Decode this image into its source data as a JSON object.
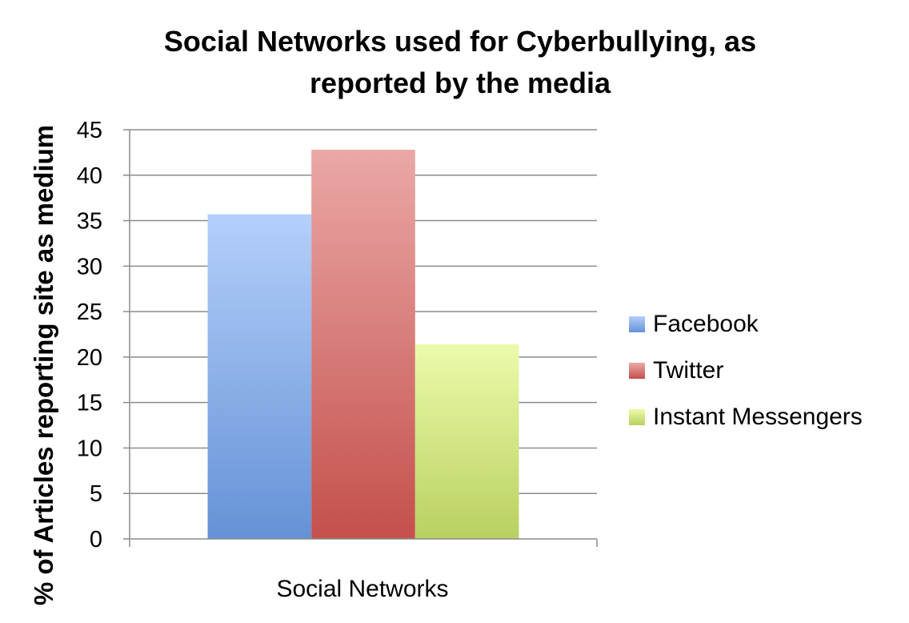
{
  "chart_data": {
    "type": "bar",
    "title_lines": [
      "Social Networks used for Cyberbullying, as",
      "reported by the media"
    ],
    "xlabel": "Social Networks",
    "ylabel": "% of Articles reporting site as medium",
    "categories": [
      "Social Networks"
    ],
    "series": [
      {
        "name": "Facebook",
        "values": [
          35.7
        ],
        "color_top": "#b4cffb",
        "color_bottom": "#6592d6"
      },
      {
        "name": "Twitter",
        "values": [
          42.8
        ],
        "color_top": "#eaa8a6",
        "color_bottom": "#c4504c"
      },
      {
        "name": "Instant Messengers",
        "values": [
          21.4
        ],
        "color_top": "#ebfbaa",
        "color_bottom": "#b9d061"
      }
    ],
    "ylim": [
      0,
      45
    ],
    "yticks": [
      0,
      5,
      10,
      15,
      20,
      25,
      30,
      35,
      40,
      45
    ],
    "grid": true,
    "legend_position": "right"
  }
}
